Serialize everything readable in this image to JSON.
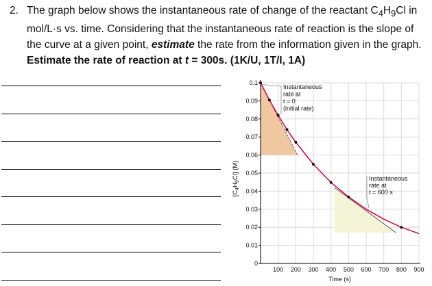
{
  "question": {
    "number": "2.",
    "part1": "The graph below shows the instantaneous rate of change of the reactant C",
    "sub1": "4",
    "part2": "H",
    "sub2": "9",
    "part3": "Cl in mol/L·s vs. time. Considering that the instantaneous rate of reaction is the slope of the curve at a given point, ",
    "estimate_word": "estimate",
    "part4": " the rate from the information given in the graph. ",
    "bold_estimate": "Estimate",
    "part5": " the rate of reaction at ",
    "t_var": "t",
    "part6": " = 300s. ",
    "marks": "(1K/U, 1T/I, 1A)"
  },
  "answer_lines": 8,
  "chart_data": {
    "type": "line",
    "xlabel": "Time (s)",
    "ylabel_parts": [
      "[C",
      "4",
      "H",
      "9",
      "Cl] (M)"
    ],
    "xlim": [
      0,
      900
    ],
    "ylim": [
      0,
      0.1
    ],
    "x_ticks": [
      "100",
      "200",
      "300",
      "400",
      "500",
      "600",
      "700",
      "800",
      "900"
    ],
    "y_ticks": [
      "0",
      "0.01",
      "0.02",
      "0.03",
      "0.04",
      "0.05",
      "0.06",
      "0.07",
      "0.08",
      "0.09",
      "0.1"
    ],
    "grid": true,
    "series": [
      {
        "x": [
          0,
          50,
          100,
          150,
          200,
          300,
          400,
          500,
          600,
          700,
          800,
          900
        ],
        "y": [
          0.1,
          0.0905,
          0.082,
          0.0741,
          0.0671,
          0.0549,
          0.0448,
          0.0368,
          0.03,
          0.0245,
          0.02,
          0.0165
        ]
      }
    ],
    "points_x": [
      0,
      50,
      100,
      150,
      200,
      300,
      400,
      500,
      800
    ],
    "tangent_initial": {
      "x1": 0,
      "y1": 0.1,
      "x2": 210,
      "y2": 0.06
    },
    "tangent_600": {
      "x1": 420,
      "y1": 0.042,
      "x2": 770,
      "y2": 0.017
    },
    "annotation_initial": [
      "Instantaneous",
      "rate at",
      "t = 0",
      "(initial rate)"
    ],
    "annotation_600": [
      "Instantaneous",
      "rate at",
      "t = 600 s"
    ],
    "colors": {
      "curve": "#d8003a",
      "tangent": "#555555",
      "triangle_initial": "#efc8a0",
      "triangle_600": "#f3f3d6",
      "grid": "#d9d9d9",
      "point": "#111111"
    }
  }
}
